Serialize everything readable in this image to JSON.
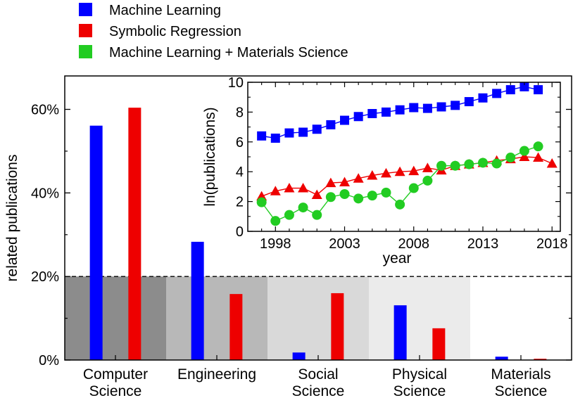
{
  "colors": {
    "ml": "#0000ff",
    "sr": "#ee0000",
    "mlms": "#22cc22",
    "band": [
      "#8c8c8c",
      "#b8b8b8",
      "#d9d9d9",
      "#ebebeb",
      "#ffffff"
    ]
  },
  "legend": {
    "items": [
      {
        "label": "Machine Learning",
        "color": "#0000ff"
      },
      {
        "label": "Symbolic Regression",
        "color": "#ee0000"
      },
      {
        "label": "Machine Learning + Materials Science",
        "color": "#22cc22"
      }
    ]
  },
  "chart_data": [
    {
      "type": "bar",
      "title": "",
      "xlabel": "",
      "ylabel": "related publications",
      "ylim": [
        0,
        68
      ],
      "yticks": [
        {
          "value": 0,
          "label": "0%"
        },
        {
          "value": 20,
          "label": "20%"
        },
        {
          "value": 40,
          "label": "40%"
        },
        {
          "value": 60,
          "label": "60%"
        }
      ],
      "categories": [
        [
          "Computer",
          "Science"
        ],
        [
          "Engineering"
        ],
        [
          "Social",
          "Science"
        ],
        [
          "Physical",
          "Science"
        ],
        [
          "Materials",
          "Science"
        ]
      ],
      "series": [
        {
          "name": "Machine Learning",
          "color": "#0000ff",
          "values": [
            56.1,
            28.3,
            1.8,
            13.1,
            0.8
          ]
        },
        {
          "name": "Symbolic Regression",
          "color": "#ee0000",
          "values": [
            60.4,
            15.8,
            16.0,
            7.6,
            0.3
          ]
        }
      ],
      "reference_line": {
        "value": 20,
        "style": "dashed"
      }
    },
    {
      "type": "line",
      "title": "",
      "xlabel": "year",
      "ylabel": "ln(publications)",
      "xlim": [
        1996,
        2018.6
      ],
      "ylim": [
        0,
        10
      ],
      "xticks": [
        1998,
        2003,
        2008,
        2013,
        2018
      ],
      "yticks": [
        0,
        2,
        4,
        6,
        8,
        10
      ],
      "x": [
        1997,
        1998,
        1999,
        2000,
        2001,
        2002,
        2003,
        2004,
        2005,
        2006,
        2007,
        2008,
        2009,
        2010,
        2011,
        2012,
        2013,
        2014,
        2015,
        2016,
        2017,
        2018
      ],
      "series": [
        {
          "name": "Machine Learning",
          "marker": "square",
          "color": "#0000ff",
          "values": [
            6.4,
            6.25,
            6.6,
            6.65,
            6.85,
            7.15,
            7.45,
            7.7,
            7.9,
            8.0,
            8.15,
            8.3,
            8.25,
            8.35,
            8.45,
            8.7,
            8.95,
            9.25,
            9.5,
            9.7,
            9.5,
            null
          ]
        },
        {
          "name": "Symbolic Regression",
          "marker": "triangle",
          "color": "#ee0000",
          "values": [
            2.35,
            2.7,
            2.9,
            2.9,
            2.45,
            3.25,
            3.3,
            3.55,
            3.75,
            3.9,
            4.0,
            4.05,
            4.25,
            4.1,
            4.4,
            4.5,
            4.6,
            4.75,
            4.85,
            5.0,
            4.95,
            4.55
          ]
        },
        {
          "name": "Machine Learning + Materials Science",
          "marker": "circle",
          "color": "#22cc22",
          "values": [
            1.95,
            0.7,
            1.1,
            1.6,
            1.1,
            2.3,
            2.5,
            2.2,
            2.4,
            2.6,
            1.8,
            2.9,
            3.4,
            4.4,
            4.4,
            4.5,
            4.6,
            4.55,
            4.95,
            5.4,
            5.7,
            null
          ]
        }
      ]
    }
  ]
}
